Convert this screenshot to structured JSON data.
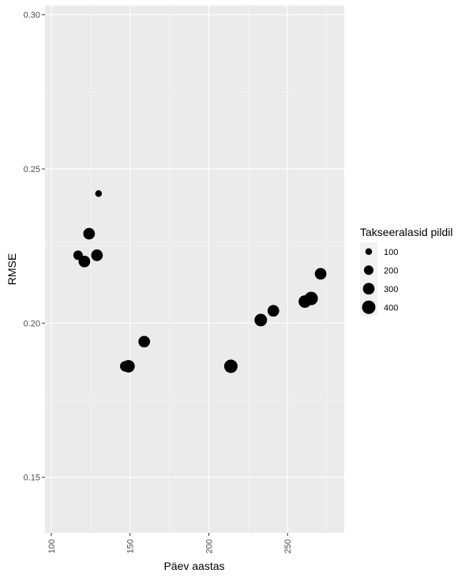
{
  "chart_data": {
    "type": "scatter",
    "xlabel": "Päev aastas",
    "ylabel": "RMSE",
    "xlim": [
      96,
      286
    ],
    "ylim": [
      0.132,
      0.303
    ],
    "x_ticks": [
      100,
      150,
      200,
      250
    ],
    "y_ticks": [
      0.15,
      0.2,
      0.25,
      0.3
    ],
    "x_tick_labels": [
      "100",
      "150",
      "200",
      "250"
    ],
    "y_tick_labels": [
      "0.15",
      "0.20",
      "0.25",
      "0.30"
    ],
    "grid": true,
    "panel_background": "#ebebeb",
    "point_color": "#000000",
    "size_legend": {
      "title": "Takseeralasid pildil",
      "placement": "right",
      "entries": [
        {
          "label": "100",
          "value": 100
        },
        {
          "label": "200",
          "value": 200
        },
        {
          "label": "300",
          "value": 300
        },
        {
          "label": "400",
          "value": 400
        }
      ]
    },
    "points": [
      {
        "x": 117,
        "y": 0.222,
        "size": 200
      },
      {
        "x": 121,
        "y": 0.22,
        "size": 300
      },
      {
        "x": 124,
        "y": 0.229,
        "size": 300
      },
      {
        "x": 129,
        "y": 0.222,
        "size": 300
      },
      {
        "x": 130,
        "y": 0.242,
        "size": 100
      },
      {
        "x": 147,
        "y": 0.186,
        "size": 250
      },
      {
        "x": 149,
        "y": 0.186,
        "size": 350
      },
      {
        "x": 159,
        "y": 0.194,
        "size": 300
      },
      {
        "x": 214,
        "y": 0.186,
        "size": 400
      },
      {
        "x": 233,
        "y": 0.201,
        "size": 350
      },
      {
        "x": 241,
        "y": 0.204,
        "size": 300
      },
      {
        "x": 261,
        "y": 0.207,
        "size": 350
      },
      {
        "x": 265,
        "y": 0.208,
        "size": 400
      },
      {
        "x": 271,
        "y": 0.216,
        "size": 300
      }
    ]
  }
}
